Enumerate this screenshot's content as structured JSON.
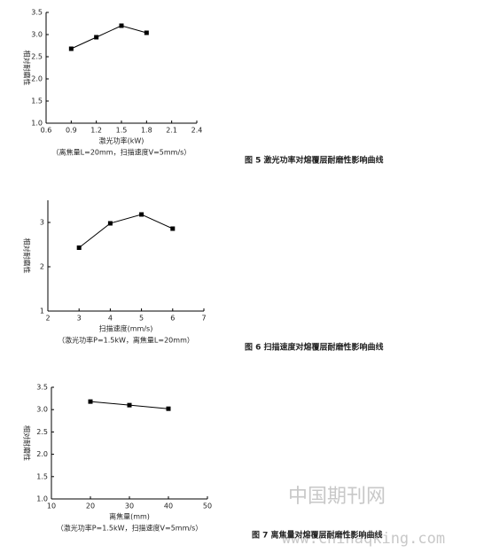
{
  "chart_data": [
    {
      "type": "line",
      "caption": "图 5 激光功率对熔覆层耐磨性影响曲线",
      "note": "（离焦量L=20mm，扫描速度V=5mm/s）",
      "xlabel": "激光功率(kW)",
      "ylabel": "相对耐磨性",
      "x": [
        0.9,
        1.2,
        1.5,
        1.8
      ],
      "series": [
        {
          "color": "#000000",
          "values": [
            2.68,
            2.94,
            3.2,
            3.04
          ]
        }
      ],
      "xlim": [
        0.6,
        2.4
      ],
      "xticks": [
        0.6,
        0.9,
        1.2,
        1.5,
        1.8,
        2.1,
        2.4
      ],
      "ylim": [
        1,
        3.5
      ],
      "yticks": [
        {
          "value": 1,
          "label": "1.0"
        },
        1.5,
        {
          "value": 2,
          "label": "2.0"
        },
        2.5,
        {
          "value": 3,
          "label": "3.0"
        },
        3.5
      ]
    },
    {
      "type": "line",
      "caption": "图 6 扫描速度对熔覆层耐磨性影响曲线",
      "note": "（激光功率P=1.5kW，离焦量L=20mm）",
      "xlabel": "扫描速度(mm/s)",
      "ylabel": "相对耐磨性",
      "x": [
        3,
        4,
        5,
        6
      ],
      "series": [
        {
          "color": "#000000",
          "values": [
            2.43,
            2.98,
            3.18,
            2.86
          ]
        }
      ],
      "xlim": [
        2,
        7
      ],
      "xticks": [
        2,
        3,
        4,
        5,
        6,
        7
      ],
      "ylim": [
        1,
        3.5
      ],
      "yticks": [
        1,
        2,
        3
      ]
    },
    {
      "type": "line",
      "caption": "图 7 离焦量对熔覆层耐磨性影响曲线",
      "note": "（激光功率P=1.5kW，扫描速度V=5mm/s）",
      "xlabel": "离焦量(mm)",
      "ylabel": "相对耐磨性",
      "x": [
        20,
        30,
        40
      ],
      "series": [
        {
          "color": "#000000",
          "values": [
            3.18,
            3.1,
            3.02
          ]
        }
      ],
      "xlim": [
        10,
        50
      ],
      "xticks": [
        10,
        20,
        30,
        40,
        50
      ],
      "ylim": [
        1,
        3.5
      ],
      "yticks": [
        {
          "value": 1,
          "label": "1.0"
        },
        1.5,
        {
          "value": 2,
          "label": "2.0"
        },
        2.5,
        {
          "value": 3,
          "label": "3.0"
        },
        3.5
      ]
    }
  ],
  "watermark": {
    "text": "中国期刊网",
    "url": "www.chinaqking.com"
  }
}
